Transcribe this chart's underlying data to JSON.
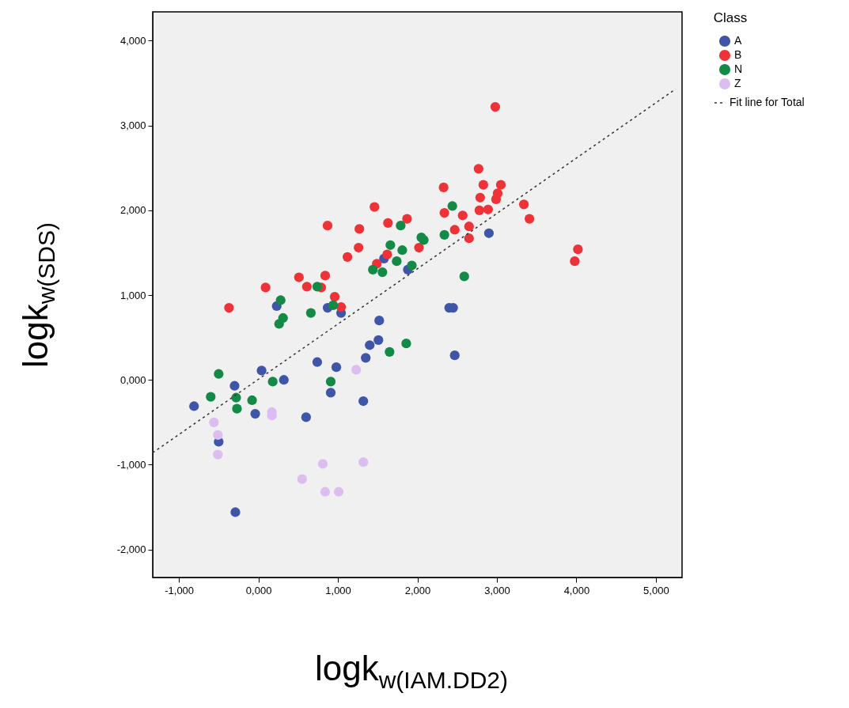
{
  "chart_data": {
    "type": "scatter",
    "xlabel": "logk$_{w(IAM.DD2)}$",
    "ylabel": "logk$_{w(SDS)}$",
    "legend_title": "Class",
    "legend": "right",
    "grid": false,
    "xlim": [
      -1.33,
      5.33
    ],
    "ylim": [
      -2.33,
      4.34
    ],
    "xticks": [
      {
        "value": -1,
        "label": "-1,000"
      },
      {
        "value": 0,
        "label": "0,000"
      },
      {
        "value": 1,
        "label": "1,000"
      },
      {
        "value": 2,
        "label": "2,000"
      },
      {
        "value": 3,
        "label": "3,000"
      },
      {
        "value": 4,
        "label": "4,000"
      },
      {
        "value": 5,
        "label": "5,000"
      }
    ],
    "yticks": [
      {
        "value": -2,
        "label": "-2,000"
      },
      {
        "value": -1,
        "label": "-1,000"
      },
      {
        "value": 0,
        "label": "0,000"
      },
      {
        "value": 1,
        "label": "1,000"
      },
      {
        "value": 2,
        "label": "2,000"
      },
      {
        "value": 3,
        "label": "3,000"
      },
      {
        "value": 4,
        "label": "4,000"
      }
    ],
    "series": [
      {
        "name": "A",
        "color": "#3f55a8",
        "marker": "circle",
        "x": [
          -0.81,
          -0.5,
          -0.3,
          -0.29,
          -0.04,
          0.04,
          0.32,
          0.6,
          0.74,
          0.98,
          0.91,
          1.32,
          1.35,
          1.4,
          1.51,
          0.23,
          0.87,
          1.04,
          1.52,
          1.58,
          1.88,
          2.4,
          2.45,
          2.47,
          2.9
        ],
        "values": [
          -0.31,
          -0.73,
          -0.07,
          -1.56,
          -0.4,
          0.11,
          0.0,
          -0.44,
          0.21,
          0.15,
          -0.15,
          -0.25,
          0.26,
          0.41,
          0.47,
          0.87,
          0.85,
          0.79,
          0.7,
          1.43,
          1.3,
          0.85,
          0.85,
          0.29,
          1.73
        ]
      },
      {
        "name": "B",
        "color": "#ee3338",
        "marker": "circle",
        "x": [
          -0.37,
          0.09,
          0.51,
          0.61,
          0.79,
          0.84,
          0.87,
          0.96,
          1.04,
          1.12,
          1.26,
          1.27,
          1.46,
          1.49,
          1.62,
          1.63,
          1.87,
          2.02,
          2.33,
          2.34,
          2.47,
          2.57,
          2.65,
          2.65,
          2.77,
          2.79,
          2.78,
          2.83,
          2.89,
          2.98,
          2.99,
          3.01,
          3.05,
          3.34,
          3.41,
          4.02,
          3.98
        ],
        "values": [
          0.85,
          1.09,
          1.21,
          1.1,
          1.09,
          1.23,
          1.82,
          0.98,
          0.86,
          1.45,
          1.56,
          1.78,
          2.04,
          1.37,
          1.48,
          1.85,
          1.9,
          1.56,
          2.27,
          1.97,
          1.77,
          1.94,
          1.81,
          1.67,
          2.49,
          2.15,
          2.0,
          2.3,
          2.01,
          3.22,
          2.13,
          2.2,
          2.3,
          2.07,
          1.9,
          1.54,
          1.4
        ]
      },
      {
        "name": "N",
        "color": "#138a45",
        "marker": "circle",
        "x": [
          0.28,
          0.31,
          0.26,
          0.66,
          0.74,
          0.94,
          1.44,
          1.56,
          1.66,
          1.74,
          1.81,
          1.79,
          1.93,
          2.44,
          2.05,
          2.08,
          2.34,
          2.59,
          -0.5,
          -0.6,
          -0.28,
          -0.27,
          -0.08,
          0.18,
          0.91,
          1.65,
          1.86
        ],
        "values": [
          0.94,
          0.73,
          0.66,
          0.79,
          1.1,
          0.88,
          1.3,
          1.27,
          1.59,
          1.4,
          1.53,
          1.82,
          1.35,
          2.05,
          1.68,
          1.65,
          1.71,
          1.22,
          0.07,
          -0.2,
          -0.21,
          -0.34,
          -0.24,
          -0.02,
          -0.02,
          0.33,
          0.43
        ]
      },
      {
        "name": "Z",
        "color": "#dcbdef",
        "marker": "circle",
        "x": [
          -0.56,
          -0.51,
          -0.51,
          0.17,
          0.17,
          0.55,
          0.81,
          0.84,
          1.01,
          1.23,
          1.32
        ],
        "values": [
          -0.5,
          -0.65,
          -0.88,
          -0.38,
          -0.42,
          -1.17,
          -0.99,
          -1.32,
          -1.32,
          0.12,
          -0.97
        ]
      },
      {
        "name": "Fit line for Total",
        "type": "line",
        "color": "#333333",
        "line_style": "dashed",
        "marker": "none",
        "x": [
          -1.33,
          5.25
        ],
        "values": [
          -0.86,
          3.43
        ]
      }
    ]
  }
}
